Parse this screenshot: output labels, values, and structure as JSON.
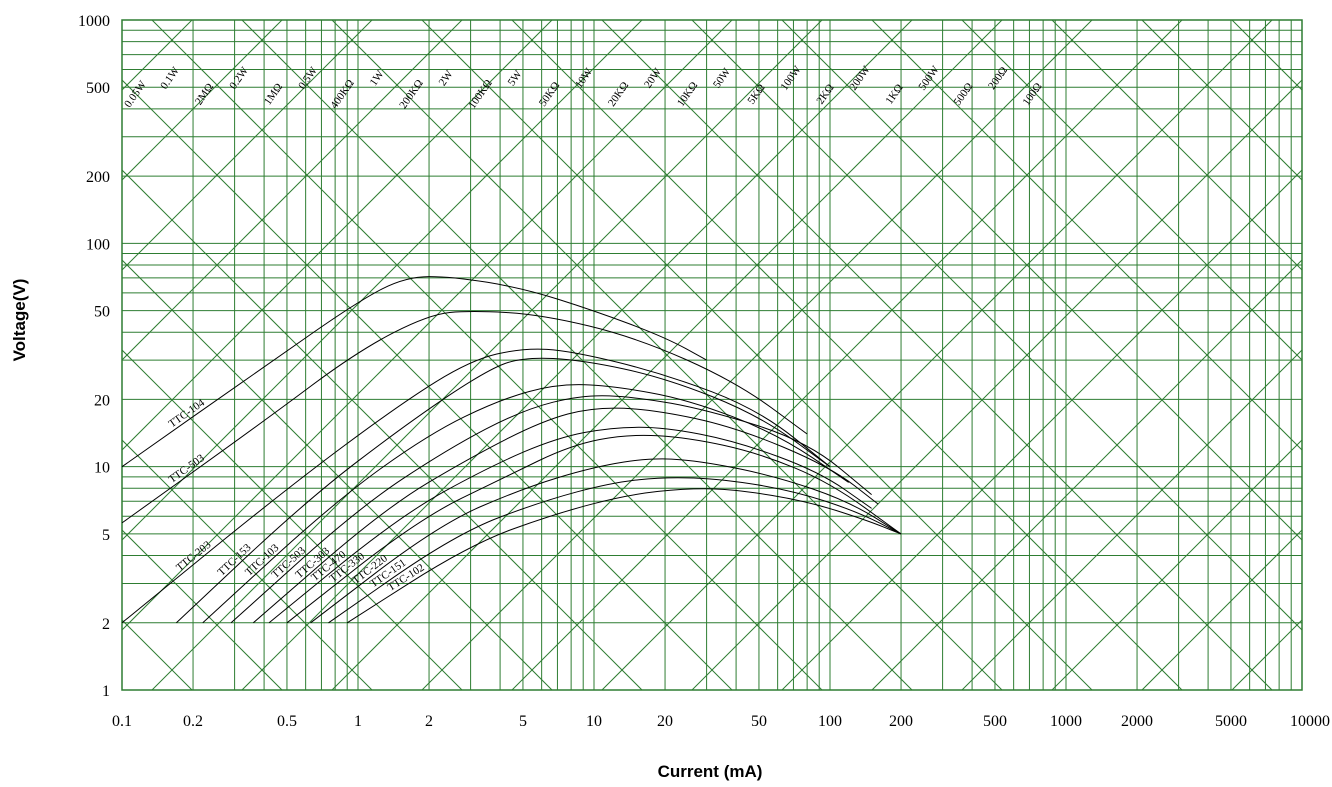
{
  "chart_data": {
    "type": "line",
    "scale": "log-log",
    "grid": true,
    "grid_color": "#2e7d32",
    "curve_color": "#000000",
    "xlabel": "Current (mA)",
    "ylabel": "Voltage(V)",
    "xlim": [
      0.1,
      10000
    ],
    "ylim": [
      1,
      1000
    ],
    "x_ticks": [
      0.1,
      0.2,
      0.5,
      1,
      2,
      5,
      10,
      20,
      50,
      100,
      200,
      500,
      1000,
      2000,
      5000,
      10000
    ],
    "x_tick_labels": [
      "0.1",
      "0.2",
      "0.5",
      "1",
      "2",
      "5",
      "10",
      "20",
      "50",
      "100",
      "200",
      "500",
      "1000",
      "2000",
      "5000",
      "10000"
    ],
    "y_ticks": [
      1,
      2,
      5,
      10,
      20,
      50,
      100,
      200,
      500,
      1000
    ],
    "y_tick_labels": [
      "1",
      "2",
      "5",
      "10",
      "20",
      "50",
      "100",
      "200",
      "500",
      "1000"
    ],
    "resistance_labels": [
      "0.05W",
      "0.1W",
      "2MΩ",
      "0.2W",
      "1MΩ",
      "0.5W",
      "400KΩ",
      "1W",
      "200KΩ",
      "2W",
      "100KΩ",
      "5W",
      "50KΩ",
      "10W",
      "20KΩ",
      "20W",
      "10KΩ",
      "50W",
      "5KΩ",
      "100W",
      "2KΩ",
      "200W",
      "1KΩ",
      "500W",
      "500Ω",
      "200Ω",
      "100Ω"
    ],
    "series": [
      {
        "name": "TTC-104",
        "points": [
          [
            0.1,
            10
          ],
          [
            0.4,
            28
          ],
          [
            1,
            55
          ],
          [
            1.6,
            71
          ],
          [
            2.5,
            71
          ],
          [
            5,
            63
          ],
          [
            10,
            50
          ],
          [
            20,
            38
          ],
          [
            30,
            30
          ]
        ]
      },
      {
        "name": "TTC-503",
        "points": [
          [
            0.1,
            5.6
          ],
          [
            0.4,
            16
          ],
          [
            1,
            33
          ],
          [
            2,
            48
          ],
          [
            3,
            50
          ],
          [
            6,
            48
          ],
          [
            15,
            38
          ],
          [
            40,
            24
          ],
          [
            80,
            14
          ]
        ]
      },
      {
        "name": "TTC-203",
        "points": [
          [
            0.1,
            2
          ],
          [
            0.5,
            8
          ],
          [
            1.5,
            19
          ],
          [
            3,
            30
          ],
          [
            5,
            34
          ],
          [
            8,
            33
          ],
          [
            20,
            26
          ],
          [
            50,
            18
          ],
          [
            100,
            10
          ]
        ]
      },
      {
        "name": "TTC-153",
        "points": [
          [
            0.17,
            2
          ],
          [
            0.6,
            7
          ],
          [
            1.6,
            15.5
          ],
          [
            3.5,
            27
          ],
          [
            5,
            31
          ],
          [
            9,
            30
          ],
          [
            20,
            25
          ],
          [
            50,
            17
          ],
          [
            100,
            10
          ]
        ]
      },
      {
        "name": "TTC-103",
        "points": [
          [
            0.22,
            2
          ],
          [
            0.8,
            7
          ],
          [
            2,
            14
          ],
          [
            4,
            20
          ],
          [
            7,
            23.5
          ],
          [
            12,
            23
          ],
          [
            25,
            20
          ],
          [
            60,
            14
          ],
          [
            120,
            8.5
          ]
        ]
      },
      {
        "name": "TTC-503",
        "points": [
          [
            0.29,
            2
          ],
          [
            1,
            6.5
          ],
          [
            2.4,
            12
          ],
          [
            5,
            18
          ],
          [
            9,
            21
          ],
          [
            15,
            20.5
          ],
          [
            30,
            18
          ],
          [
            80,
            13
          ],
          [
            150,
            7.5
          ]
        ]
      },
      {
        "name": "TTC-303",
        "points": [
          [
            0.36,
            2
          ],
          [
            1.3,
            6.5
          ],
          [
            3,
            11
          ],
          [
            6,
            16
          ],
          [
            10,
            18.5
          ],
          [
            18,
            18
          ],
          [
            40,
            15
          ],
          [
            100,
            10
          ],
          [
            160,
            6.8
          ]
        ]
      },
      {
        "name": "TTC-470",
        "points": [
          [
            0.42,
            2
          ],
          [
            1.5,
            6
          ],
          [
            3.6,
            10
          ],
          [
            7,
            13.5
          ],
          [
            12,
            15
          ],
          [
            20,
            15
          ],
          [
            40,
            13
          ],
          [
            90,
            9.5
          ],
          [
            150,
            6.5
          ]
        ]
      },
      {
        "name": "TTC-330",
        "points": [
          [
            0.5,
            2
          ],
          [
            1.8,
            5.8
          ],
          [
            4.2,
            9
          ],
          [
            8,
            12.5
          ],
          [
            14,
            14
          ],
          [
            25,
            13.5
          ],
          [
            50,
            11.5
          ],
          [
            100,
            8.5
          ],
          [
            200,
            5
          ]
        ]
      },
      {
        "name": "TTC-220",
        "points": [
          [
            0.63,
            2
          ],
          [
            2.2,
            5.5
          ],
          [
            5,
            8
          ],
          [
            10,
            10
          ],
          [
            18,
            11
          ],
          [
            30,
            10.5
          ],
          [
            60,
            9
          ],
          [
            120,
            7
          ],
          [
            200,
            5
          ]
        ]
      },
      {
        "name": "TTC-151",
        "points": [
          [
            0.75,
            2
          ],
          [
            2.6,
            5
          ],
          [
            6,
            7
          ],
          [
            12,
            8.5
          ],
          [
            20,
            9
          ],
          [
            35,
            8.8
          ],
          [
            70,
            7.8
          ],
          [
            130,
            6.3
          ],
          [
            200,
            5
          ]
        ]
      },
      {
        "name": "TTC-102",
        "points": [
          [
            0.9,
            2
          ],
          [
            3,
            4.5
          ],
          [
            7,
            6.2
          ],
          [
            14,
            7.5
          ],
          [
            25,
            8
          ],
          [
            40,
            7.9
          ],
          [
            80,
            7
          ],
          [
            140,
            5.8
          ],
          [
            200,
            5
          ]
        ]
      }
    ]
  }
}
